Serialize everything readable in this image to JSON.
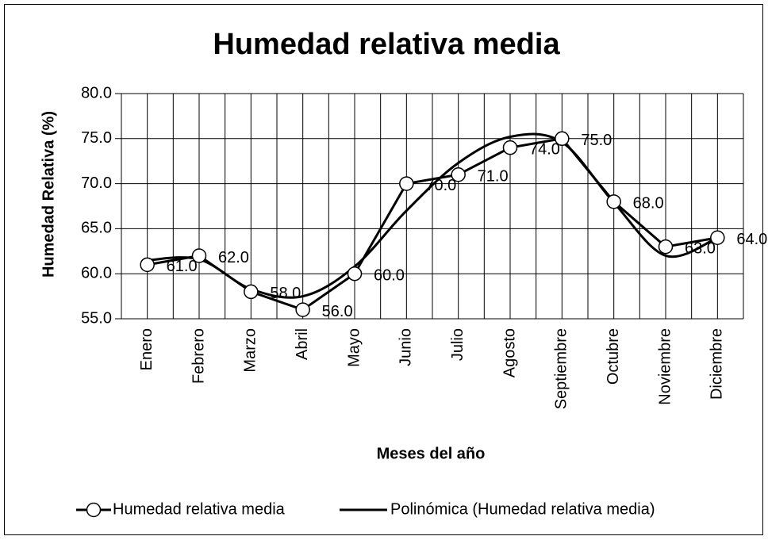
{
  "chart_data": {
    "type": "line",
    "title": "Humedad relativa media",
    "x_label": "Meses del año",
    "y_label": "Humedad Relativa (%)",
    "categories": [
      "Enero",
      "Febrero",
      "Marzo",
      "Abril",
      "Mayo",
      "Junio",
      "Julio",
      "Agosto",
      "Septiembre",
      "Octubre",
      "Noviembre",
      "Diciembre"
    ],
    "series": [
      {
        "name": "Humedad relativa media",
        "color": "#000000",
        "values": [
          61,
          62,
          58,
          56,
          60,
          70,
          71,
          74,
          75,
          68,
          63,
          64
        ],
        "value_labels": [
          "61.0",
          "62.0",
          "58.0",
          "56.0",
          "60.0",
          "70.0",
          "71.0",
          "74.0",
          "75.0",
          "68.0",
          "63.0",
          "64.0"
        ]
      },
      {
        "name": "Polinómica (Humedad relativa media)",
        "color": "#000000",
        "values": [
          61.5,
          61.6,
          58.3,
          57.5,
          60.8,
          67.0,
          72.3,
          75.2,
          74.6,
          67.9,
          62.0,
          64.0
        ]
      }
    ],
    "ylim": [
      55,
      80
    ],
    "yticks": [
      {
        "value": 55,
        "label": "55.0"
      },
      {
        "value": 60,
        "label": "60.0"
      },
      {
        "value": 65,
        "label": "65.0"
      },
      {
        "value": 70,
        "label": "70.0"
      },
      {
        "value": 75,
        "label": "75.0"
      },
      {
        "value": 80,
        "label": "80.0"
      }
    ],
    "grid": true,
    "legend": "bottom"
  }
}
